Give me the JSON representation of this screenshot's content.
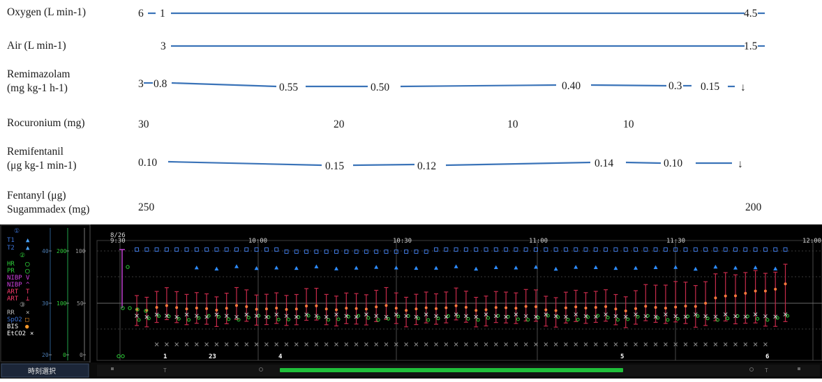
{
  "drug_panel": {
    "rows": [
      {
        "label": "Oxygen (L min-1)"
      },
      {
        "label": "Air (L min-1)"
      },
      {
        "label": "Remimazolam\n(mg kg-1 h-1)"
      },
      {
        "label": "Rocuronium (mg)"
      },
      {
        "label": "Remifentanil\n(μg kg-1 min-1)"
      },
      {
        "label": "Fentanyl (μg)\nSugammadex (mg)"
      }
    ],
    "values": {
      "oxygen": [
        "6",
        "1",
        "4.5"
      ],
      "air": [
        "3",
        "1.5"
      ],
      "remimazolam": [
        "3",
        "0.8",
        "0.55",
        "0.50",
        "0.40",
        "0.3",
        "0.15",
        "↓"
      ],
      "rocuronium": [
        "30",
        "20",
        "10",
        "10"
      ],
      "remifentanil": [
        "0.10",
        "0.15",
        "0.12",
        "0.14",
        "0.10",
        "↓"
      ],
      "fentanyl_sugammadex": [
        "250",
        "200"
      ]
    }
  },
  "monitor": {
    "legend": {
      "t1": "T1",
      "t2": "T2",
      "hr": "HR",
      "pr": "PR",
      "nibp_sys": "NIBP",
      "nibp_dia": "NIBP",
      "art_sys": "ART",
      "art_dia": "ART",
      "rr": "RR",
      "spo2": "SpO2",
      "bis": "BIS",
      "etco2": "EtCO2",
      "circle_1": "①",
      "circle_2": "②",
      "circle_3": "③"
    },
    "axes": {
      "scale_a": [
        "40",
        "30",
        "20"
      ],
      "scale_b": [
        "200",
        "100",
        "0"
      ],
      "scale_c": [
        "100",
        "50",
        "0"
      ]
    },
    "date": "8/26",
    "time_labels": [
      "9:30",
      "10:00",
      "10:30",
      "11:00",
      "11:30",
      "12:00"
    ],
    "event_markers": [
      "1",
      "23",
      "4",
      "5",
      "6"
    ],
    "time_select_button": "時刻選択",
    "bottom_marks": [
      "T",
      "T"
    ]
  }
}
